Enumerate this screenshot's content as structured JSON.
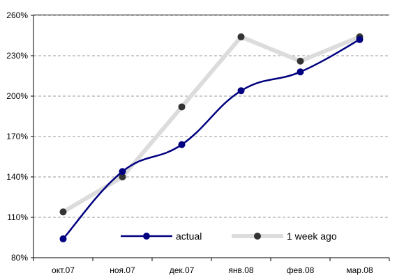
{
  "chart_data": {
    "type": "line",
    "categories": [
      "окт.07",
      "ноя.07",
      "дек.07",
      "янв.08",
      "фев.08",
      "мар.08"
    ],
    "y_axis": {
      "min": 80,
      "max": 260,
      "ticks": [
        80,
        110,
        140,
        170,
        200,
        230,
        260
      ],
      "tick_labels": [
        "80%",
        "110%",
        "140%",
        "170%",
        "200%",
        "230%",
        "260%"
      ]
    },
    "grid": true,
    "legend_position": "bottom-center",
    "series": [
      {
        "name": "actual",
        "values": [
          94,
          144,
          164,
          204,
          218,
          242
        ],
        "line_color": "#000080",
        "marker_color": "#000080",
        "smooth": true
      },
      {
        "name": "1 week ago",
        "values": [
          114,
          140,
          192,
          244,
          226,
          244
        ],
        "line_color": "#dcdcdc",
        "marker_color": "#333333",
        "smooth": false
      }
    ]
  }
}
